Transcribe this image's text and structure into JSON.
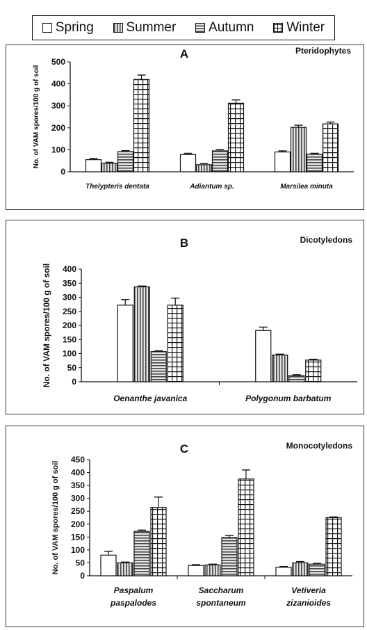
{
  "legend": {
    "items": [
      {
        "label": "Spring",
        "pattern": "spring"
      },
      {
        "label": "Summer",
        "pattern": "summer"
      },
      {
        "label": "Autumn",
        "pattern": "autumn"
      },
      {
        "label": "Winter",
        "pattern": "winter"
      }
    ]
  },
  "chart_data": [
    {
      "type": "bar",
      "panel": "A",
      "title": "Pteridophytes",
      "ylabel": "No. of VAM spores/100 g of soil",
      "ylim": [
        0,
        500
      ],
      "yticks": [
        0,
        100,
        200,
        300,
        400,
        500
      ],
      "categories": [
        "Thelypteris dentata",
        "Adiantum sp.",
        "Marsilea minuta"
      ],
      "series": [
        {
          "name": "Spring",
          "values": [
            55,
            78,
            90
          ],
          "errors": [
            6,
            6,
            5
          ]
        },
        {
          "name": "Summer",
          "values": [
            38,
            32,
            202
          ],
          "errors": [
            5,
            5,
            10
          ]
        },
        {
          "name": "Autumn",
          "values": [
            92,
            95,
            80
          ],
          "errors": [
            4,
            6,
            4
          ]
        },
        {
          "name": "Winter",
          "values": [
            420,
            312,
            218
          ],
          "errors": [
            20,
            15,
            8
          ]
        }
      ]
    },
    {
      "type": "bar",
      "panel": "B",
      "title": "Dicotyledons",
      "ylabel": "No. of VAM spores/100 g of soil",
      "ylim": [
        0,
        400
      ],
      "yticks": [
        0,
        50,
        100,
        150,
        200,
        250,
        300,
        350,
        400
      ],
      "categories": [
        "Oenanthe javanica",
        "Polygonum barbatum"
      ],
      "series": [
        {
          "name": "Spring",
          "values": [
            272,
            182
          ],
          "errors": [
            20,
            12
          ]
        },
        {
          "name": "Summer",
          "values": [
            337,
            95
          ],
          "errors": [
            3,
            3
          ]
        },
        {
          "name": "Autumn",
          "values": [
            107,
            22
          ],
          "errors": [
            3,
            3
          ]
        },
        {
          "name": "Winter",
          "values": [
            272,
            77
          ],
          "errors": [
            25,
            3
          ]
        }
      ]
    },
    {
      "type": "bar",
      "panel": "C",
      "title": "Monocotyledons",
      "ylabel": "No. of VAM spores/100 g of soil",
      "ylim": [
        0,
        450
      ],
      "yticks": [
        0,
        50,
        100,
        150,
        200,
        250,
        300,
        350,
        400,
        450
      ],
      "categories": [
        "Paspalum paspalodes",
        "Saccharum spontaneum",
        "Vetiveria zizanioides"
      ],
      "series": [
        {
          "name": "Spring",
          "values": [
            80,
            40,
            33
          ],
          "errors": [
            15,
            3,
            3
          ]
        },
        {
          "name": "Summer",
          "values": [
            50,
            42,
            50
          ],
          "errors": [
            3,
            3,
            5
          ]
        },
        {
          "name": "Autumn",
          "values": [
            172,
            148,
            45
          ],
          "errors": [
            5,
            8,
            3
          ]
        },
        {
          "name": "Winter",
          "values": [
            265,
            375,
            225
          ],
          "errors": [
            40,
            35,
            3
          ]
        }
      ]
    }
  ]
}
